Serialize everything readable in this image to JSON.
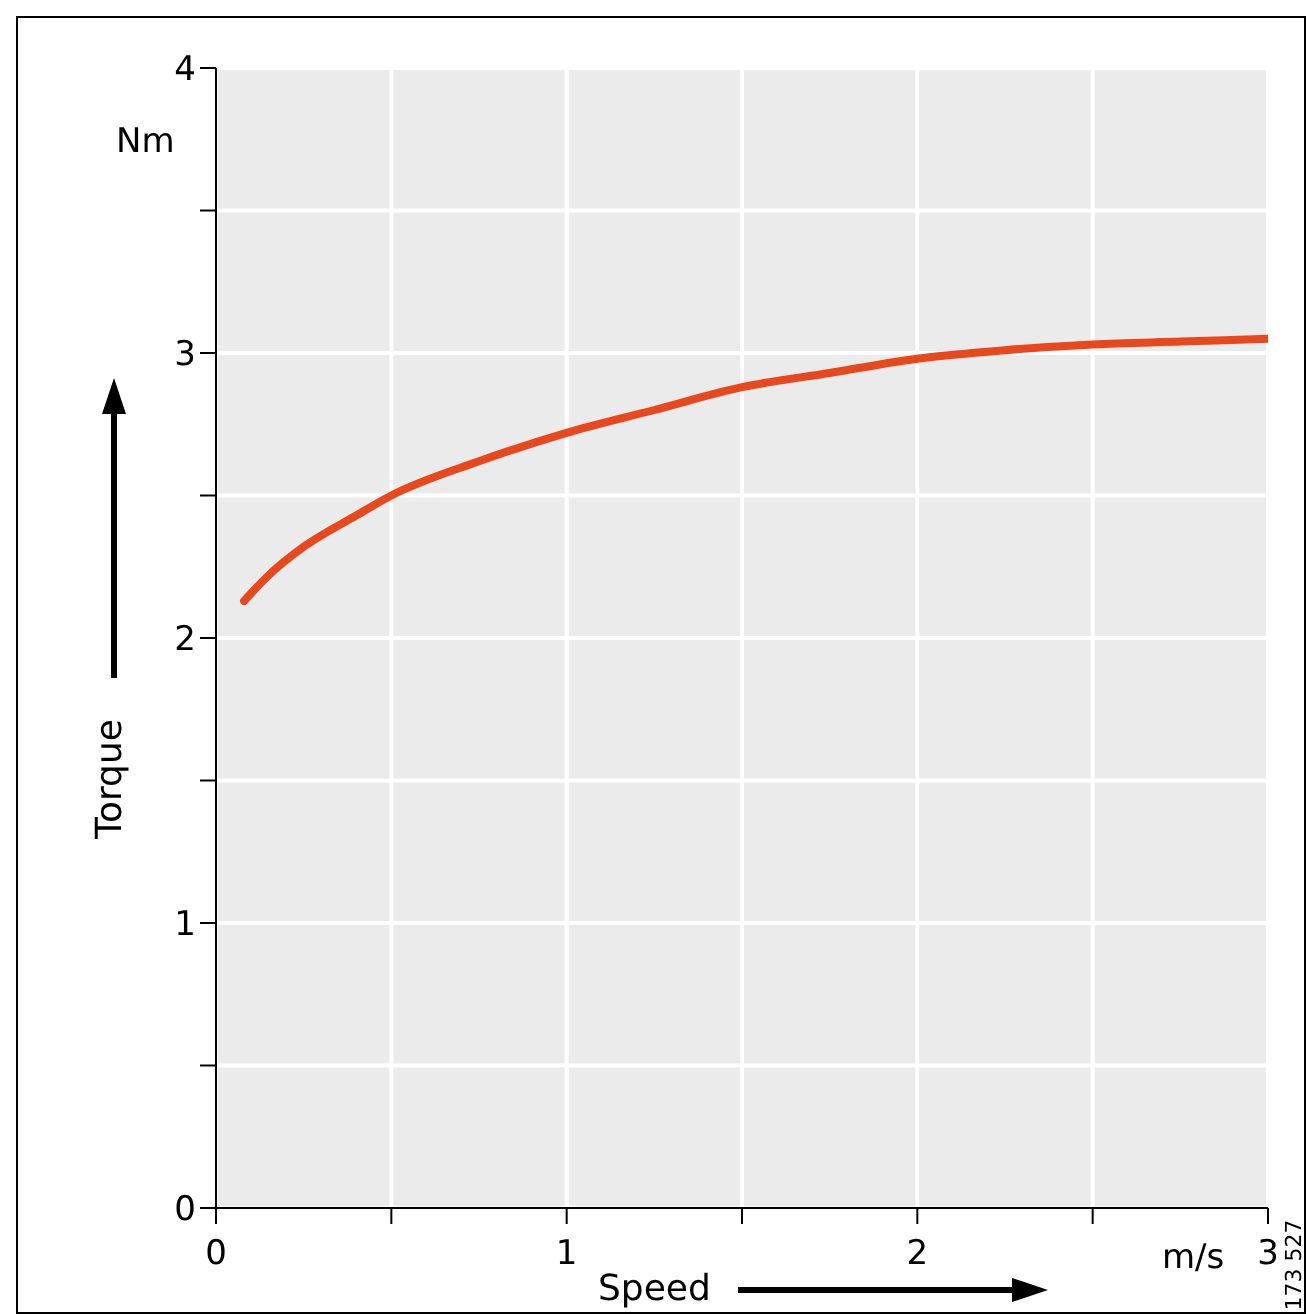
{
  "chart_data": {
    "type": "line",
    "xlabel": "Speed",
    "ylabel": "Torque",
    "x": [
      0.08,
      0.15,
      0.25,
      0.4,
      0.5,
      0.75,
      1,
      1.25,
      1.5,
      1.75,
      2,
      2.25,
      2.5,
      2.75,
      3
    ],
    "series": [
      {
        "color": "#e8481e",
        "values": [
          2.13,
          2.22,
          2.32,
          2.43,
          2.5,
          2.62,
          2.72,
          2.8,
          2.88,
          2.93,
          2.98,
          3.01,
          3.03,
          3.04,
          3.05
        ]
      }
    ],
    "xlim": [
      0,
      3
    ],
    "xticks": [
      0,
      {
        "value": 0.5,
        "label": null
      },
      1,
      {
        "value": 1.5,
        "label": null
      },
      2,
      {
        "value": 2.5,
        "label": null
      },
      3
    ],
    "ylim": [
      0,
      4
    ],
    "yticks": [
      0,
      {
        "value": 0.5,
        "label": null
      },
      1,
      {
        "value": 1.5,
        "label": null
      },
      2,
      {
        "value": 2.5,
        "label": null
      },
      3,
      {
        "value": 3.5,
        "label": null
      },
      4
    ],
    "grid": true,
    "marker": "none",
    "line_style": "solid",
    "annotations": [
      "Nm",
      "m/s",
      "173 527"
    ]
  }
}
